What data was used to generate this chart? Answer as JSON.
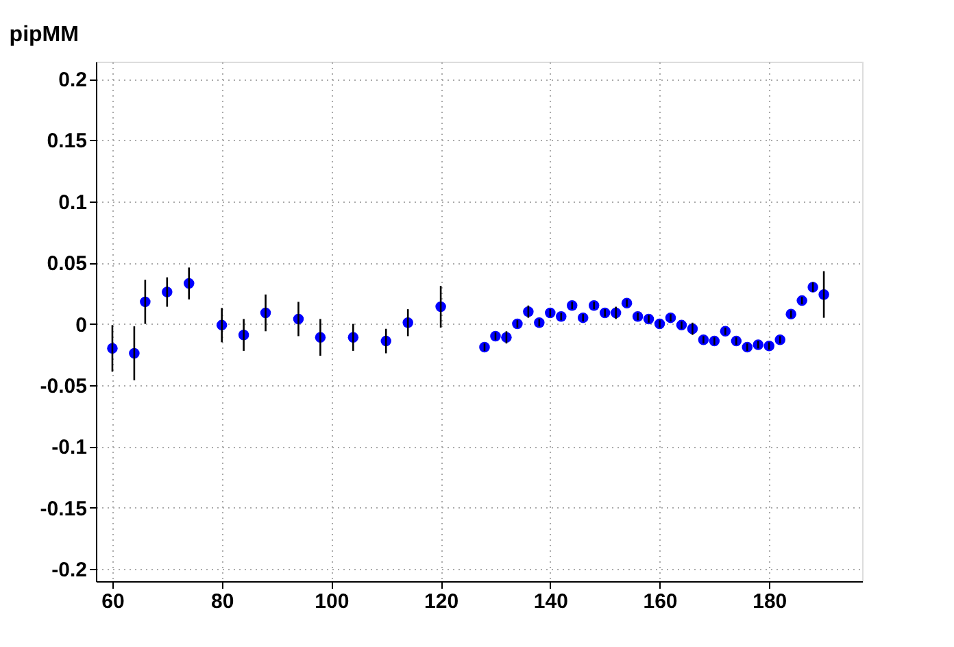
{
  "chart_data": {
    "type": "scatter",
    "title": "pipMM",
    "x": [
      60,
      64,
      66,
      70,
      74,
      80,
      84,
      88,
      94,
      98,
      104,
      110,
      114,
      120,
      128,
      130,
      132,
      134,
      136,
      138,
      140,
      142,
      144,
      146,
      148,
      150,
      152,
      154,
      156,
      158,
      160,
      162,
      164,
      166,
      168,
      170,
      172,
      174,
      176,
      178,
      180,
      182,
      184,
      186,
      188,
      190
    ],
    "series": [
      {
        "color": "#0000ff",
        "values": [
          -0.02,
          -0.024,
          0.018,
          0.026,
          0.033,
          -0.001,
          -0.009,
          0.009,
          0.004,
          -0.011,
          -0.011,
          -0.014,
          0.001,
          0.014,
          -0.019,
          -0.01,
          -0.011,
          0.0,
          0.01,
          0.001,
          0.009,
          0.006,
          0.015,
          0.005,
          0.015,
          0.009,
          0.009,
          0.017,
          0.006,
          0.004,
          0.0,
          0.005,
          -0.001,
          -0.004,
          -0.013,
          -0.014,
          -0.006,
          -0.014,
          -0.019,
          -0.017,
          -0.018,
          -0.013,
          0.008,
          0.019,
          0.03,
          0.024
        ],
        "errors": [
          0.019,
          0.022,
          0.018,
          0.012,
          0.013,
          0.014,
          0.013,
          0.015,
          0.014,
          0.015,
          0.011,
          0.01,
          0.011,
          0.017,
          0.003,
          0.003,
          0.005,
          0.003,
          0.005,
          0.003,
          0.003,
          0.003,
          0.003,
          0.003,
          0.003,
          0.003,
          0.005,
          0.003,
          0.003,
          0.003,
          0.003,
          0.003,
          0.003,
          0.005,
          0.003,
          0.003,
          0.003,
          0.003,
          0.003,
          0.003,
          0.003,
          0.003,
          0.003,
          0.003,
          0.004,
          0.019
        ]
      }
    ],
    "xlim": [
      57,
      197
    ],
    "xticks": [
      60,
      80,
      100,
      120,
      140,
      160,
      180
    ],
    "ylim": [
      -0.21,
      0.214
    ],
    "yticks": [
      {
        "value": -0.2,
        "label": "-0.2"
      },
      {
        "value": -0.15,
        "label": "-0.15"
      },
      {
        "value": -0.1,
        "label": "-0.1"
      },
      {
        "value": -0.05,
        "label": "-0.05"
      },
      {
        "value": 0,
        "label": "0"
      },
      {
        "value": 0.05,
        "label": "0.05"
      },
      {
        "value": 0.1,
        "label": "0.1"
      },
      {
        "value": 0.15,
        "label": "0.15"
      },
      {
        "value": 0.2,
        "label": "0.2"
      }
    ],
    "grid": true,
    "marker": "circle"
  }
}
